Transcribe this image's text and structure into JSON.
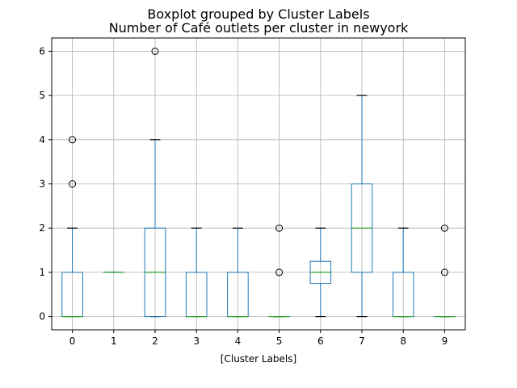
{
  "chart_data": {
    "type": "boxplot",
    "suptitle": "Boxplot grouped by Cluster Labels",
    "title": "Number of Café outlets per cluster in newyork",
    "xlabel": "[Cluster Labels]",
    "ylabel": "",
    "ylim": [
      -0.3,
      6.3
    ],
    "yticks": [
      "0",
      "1",
      "2",
      "3",
      "4",
      "5",
      "6"
    ],
    "grid": true,
    "colors": {
      "box": "#1f77b4",
      "median": "#2ca02c",
      "whisker_cap": "#000000",
      "grid": "#b0b0b0"
    },
    "categories": [
      "0",
      "1",
      "2",
      "3",
      "4",
      "5",
      "6",
      "7",
      "8",
      "9"
    ],
    "boxes": [
      {
        "label": "0",
        "whislo": 0,
        "q1": 0,
        "med": 0,
        "q3": 1,
        "whishi": 2,
        "fliers": [
          3,
          4
        ]
      },
      {
        "label": "1",
        "whislo": 1,
        "q1": 1,
        "med": 1,
        "q3": 1,
        "whishi": 1,
        "fliers": []
      },
      {
        "label": "2",
        "whislo": 0,
        "q1": 0,
        "med": 1,
        "q3": 2,
        "whishi": 4,
        "fliers": [
          6
        ]
      },
      {
        "label": "3",
        "whislo": 0,
        "q1": 0,
        "med": 0,
        "q3": 1,
        "whishi": 2,
        "fliers": []
      },
      {
        "label": "4",
        "whislo": 0,
        "q1": 0,
        "med": 0,
        "q3": 1,
        "whishi": 2,
        "fliers": []
      },
      {
        "label": "5",
        "whislo": 0,
        "q1": 0,
        "med": 0,
        "q3": 0,
        "whishi": 0,
        "fliers": [
          1,
          2
        ]
      },
      {
        "label": "6",
        "whislo": 0,
        "q1": 0.75,
        "med": 1,
        "q3": 1.25,
        "whishi": 2,
        "fliers": []
      },
      {
        "label": "7",
        "whislo": 0,
        "q1": 1,
        "med": 2,
        "q3": 3,
        "whishi": 5,
        "fliers": []
      },
      {
        "label": "8",
        "whislo": 0,
        "q1": 0,
        "med": 0,
        "q3": 1,
        "whishi": 2,
        "fliers": []
      },
      {
        "label": "9",
        "whislo": 0,
        "q1": 0,
        "med": 0,
        "q3": 0,
        "whishi": 0,
        "fliers": [
          1,
          2
        ]
      }
    ]
  }
}
